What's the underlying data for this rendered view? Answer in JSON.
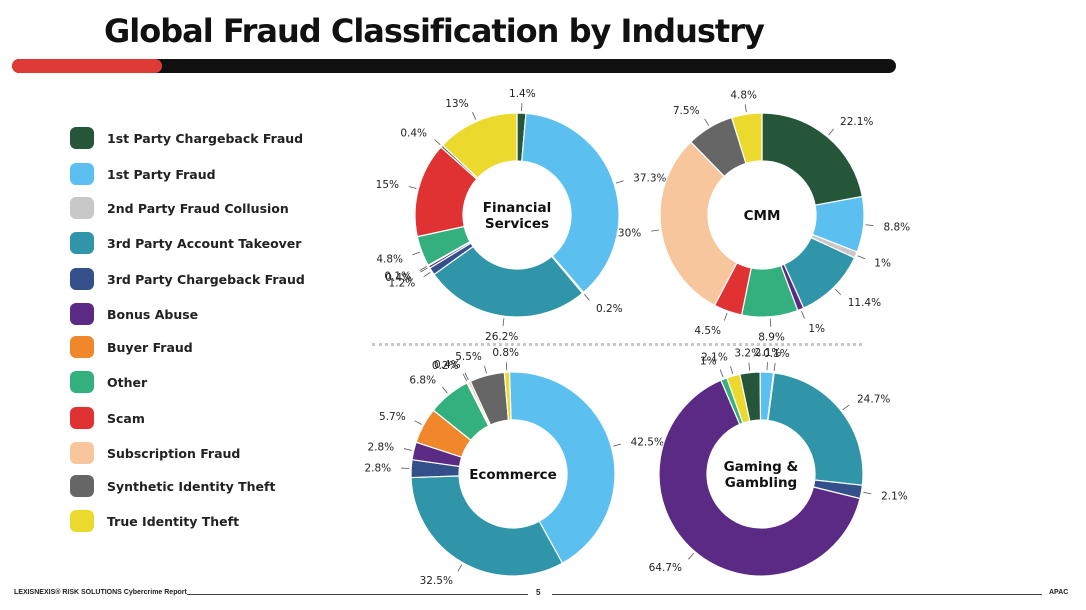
{
  "title": "Global Fraud Classification by Industry",
  "colors": {
    "title_accent": "#e03a36",
    "title_bar": "#111111"
  },
  "legend": [
    {
      "label": "1st Party Chargeback Fraud",
      "color": "#25563a"
    },
    {
      "label": "1st Party Fraud",
      "color": "#5bc0f0"
    },
    {
      "label": "2nd Party Fraud Collusion",
      "color": "#c8c8c8"
    },
    {
      "label": "3rd Party Account Takeover",
      "color": "#3095a8"
    },
    {
      "label": "3rd Party Chargeback Fraud",
      "color": "#34508a"
    },
    {
      "label": "Bonus Abuse",
      "color": "#5a2a85"
    },
    {
      "label": "Buyer Fraud",
      "color": "#f0872a"
    },
    {
      "label": "Other",
      "color": "#34b07e"
    },
    {
      "label": "Scam",
      "color": "#e03232"
    },
    {
      "label": "Subscription Fraud",
      "color": "#f7c69c"
    },
    {
      "label": "Synthetic Identity Theft",
      "color": "#666666"
    },
    {
      "label": "True Identity Theft",
      "color": "#ecd92e"
    }
  ],
  "chart_data": [
    {
      "type": "pie",
      "title": "Financial Services",
      "center_label": [
        "Financial",
        "Services"
      ],
      "slices": [
        {
          "category": "1st Party Chargeback Fraud",
          "value": 1.4,
          "label": "1.4%"
        },
        {
          "category": "1st Party Fraud",
          "value": 37.3,
          "label": "37.3%"
        },
        {
          "category": "2nd Party Fraud Collusion",
          "value": 0.2,
          "label": "0.2%"
        },
        {
          "category": "3rd Party Account Takeover",
          "value": 26.2,
          "label": "26.2%"
        },
        {
          "category": "3rd Party Chargeback Fraud",
          "value": 1.2,
          "label": "1.2%"
        },
        {
          "category": "Bonus Abuse",
          "value": 0.4,
          "label": "0.4%"
        },
        {
          "category": "Buyer Fraud",
          "value": 0.1,
          "label": "0.1%"
        },
        {
          "category": "Other",
          "value": 4.8,
          "label": "4.8%"
        },
        {
          "category": "Scam",
          "value": 15,
          "label": "15%"
        },
        {
          "category": "Synthetic Identity Theft",
          "value": 0.4,
          "label": "0.4%"
        },
        {
          "category": "True Identity Theft",
          "value": 13,
          "label": "13%"
        }
      ]
    },
    {
      "type": "pie",
      "title": "CMM",
      "center_label": [
        "CMM"
      ],
      "slices": [
        {
          "category": "1st Party Chargeback Fraud",
          "value": 22.1,
          "label": "22.1%"
        },
        {
          "category": "1st Party Fraud",
          "value": 8.8,
          "label": "8.8%"
        },
        {
          "category": "2nd Party Fraud Collusion",
          "value": 1,
          "label": "1%"
        },
        {
          "category": "3rd Party Account Takeover",
          "value": 11.4,
          "label": "11.4%"
        },
        {
          "category": "Bonus Abuse",
          "value": 1,
          "label": "1%"
        },
        {
          "category": "Other",
          "value": 8.9,
          "label": "8.9%"
        },
        {
          "category": "Scam",
          "value": 4.5,
          "label": "4.5%"
        },
        {
          "category": "Subscription Fraud",
          "value": 30,
          "label": "30%"
        },
        {
          "category": "Synthetic Identity Theft",
          "value": 7.5,
          "label": "7.5%"
        },
        {
          "category": "True Identity Theft",
          "value": 4.8,
          "label": "4.8%"
        }
      ]
    },
    {
      "type": "pie",
      "title": "Ecommerce",
      "center_label": [
        "Ecommerce"
      ],
      "slices": [
        {
          "category": "1st Party Fraud",
          "value": 42.5,
          "label": "42.5%"
        },
        {
          "category": "3rd Party Account Takeover",
          "value": 32.5,
          "label": "32.5%"
        },
        {
          "category": "3rd Party Chargeback Fraud",
          "value": 2.8,
          "label": "2.8%"
        },
        {
          "category": "Bonus Abuse",
          "value": 2.8,
          "label": "2.8%"
        },
        {
          "category": "Buyer Fraud",
          "value": 5.7,
          "label": "5.7%"
        },
        {
          "category": "Other",
          "value": 6.8,
          "label": "6.8%"
        },
        {
          "category": "Scam",
          "value": 0.2,
          "label": "0.2%"
        },
        {
          "category": "Subscription Fraud",
          "value": 0.4,
          "label": "0.4%"
        },
        {
          "category": "Synthetic Identity Theft",
          "value": 5.5,
          "label": "5.5%"
        },
        {
          "category": "True Identity Theft",
          "value": 0.8,
          "label": "0.8%"
        }
      ]
    },
    {
      "type": "pie",
      "title": "Gaming & Gambling",
      "center_label": [
        "Gaming &",
        "Gambling"
      ],
      "slices": [
        {
          "category": "1st Party Chargeback Fraud",
          "value": 3.2,
          "label": "3.2%"
        },
        {
          "category": "1st Party Fraud",
          "value": 2.1,
          "label": "2.1%"
        },
        {
          "category": "2nd Party Fraud Collusion",
          "value": 0.1,
          "label": "0.1%"
        },
        {
          "category": "3rd Party Account Takeover",
          "value": 24.7,
          "label": "24.7%"
        },
        {
          "category": "3rd Party Chargeback Fraud",
          "value": 2.1,
          "label": "2.1%"
        },
        {
          "category": "Bonus Abuse",
          "value": 64.7,
          "label": "64.7%"
        },
        {
          "category": "Other",
          "value": 1,
          "label": "1%"
        },
        {
          "category": "True Identity Theft",
          "value": 2.1,
          "label": "2.1%"
        }
      ]
    }
  ],
  "footer": {
    "left": "LEXISNEXIS® RISK SOLUTIONS Cybercrime Report",
    "page": "5",
    "right": "APAC"
  }
}
